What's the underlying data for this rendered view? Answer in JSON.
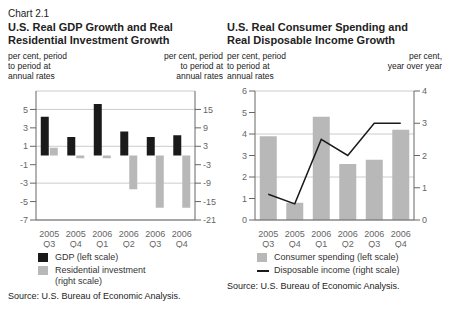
{
  "chart_data": [
    {
      "type": "bar",
      "subtitle": "Chart 2.1",
      "title": "U.S. Real GDP Growth and Real\nResidential Investment Growth",
      "ylabel": "per cent, period\nto period at\nannual rates",
      "y2label": "per cent, period\nto period at\nannual rates",
      "categories": [
        "2005\nQ3",
        "2005\nQ4",
        "2006\nQ1",
        "2006\nQ2",
        "2006\nQ3",
        "2006\nQ4"
      ],
      "series": [
        {
          "name": "GDP (left scale)",
          "color": "#1a1a1a",
          "values": [
            4.2,
            2.0,
            5.6,
            2.6,
            2.0,
            2.2
          ]
        },
        {
          "name": "Residential investment\n(right scale)",
          "color": "#b8b8b8",
          "axis": "y2",
          "values": [
            2.5,
            -0.9,
            -0.9,
            -11.0,
            -17.0,
            -17.0
          ]
        }
      ],
      "ylim": [
        -7,
        7
      ],
      "yticks": [
        -7,
        -5,
        -3,
        -1,
        1,
        3,
        5
      ],
      "y2lim": [
        -21,
        21
      ],
      "y2ticks": [
        -21,
        -15,
        -9,
        -3,
        3,
        9,
        15
      ],
      "grid": true,
      "legend": "bottom",
      "annotations": [
        "Source: U.S. Bureau of Economic Analysis."
      ]
    },
    {
      "type": "bar",
      "title": "U.S. Real Consumer Spending and\nReal Disposable Income Growth",
      "ylabel": "per cent, period\nto period at\nannual rates",
      "y2label": "per cent,\nyear over year",
      "categories": [
        "2005\nQ3",
        "2005\nQ4",
        "2006\nQ1",
        "2006\nQ2",
        "2006\nQ3",
        "2006\nQ4"
      ],
      "series": [
        {
          "name": "Consumer spending (left scale)",
          "color": "#b8b8b8",
          "values": [
            3.9,
            0.8,
            4.8,
            2.6,
            2.8,
            4.2
          ]
        },
        {
          "name": "Disposable income (right scale)",
          "color": "#1a1a1a",
          "type": "line",
          "axis": "y2",
          "values": [
            0.8,
            0.5,
            2.5,
            2.0,
            3.0,
            3.0
          ]
        }
      ],
      "ylim": [
        0,
        6
      ],
      "yticks": [
        0,
        1,
        2,
        3,
        4,
        5,
        6
      ],
      "y2lim": [
        0,
        4
      ],
      "y2ticks": [
        0,
        1,
        2,
        3,
        4
      ],
      "grid": true,
      "legend": "bottom",
      "annotations": [
        "Source: U.S. Bureau of Economic Analysis."
      ]
    }
  ]
}
